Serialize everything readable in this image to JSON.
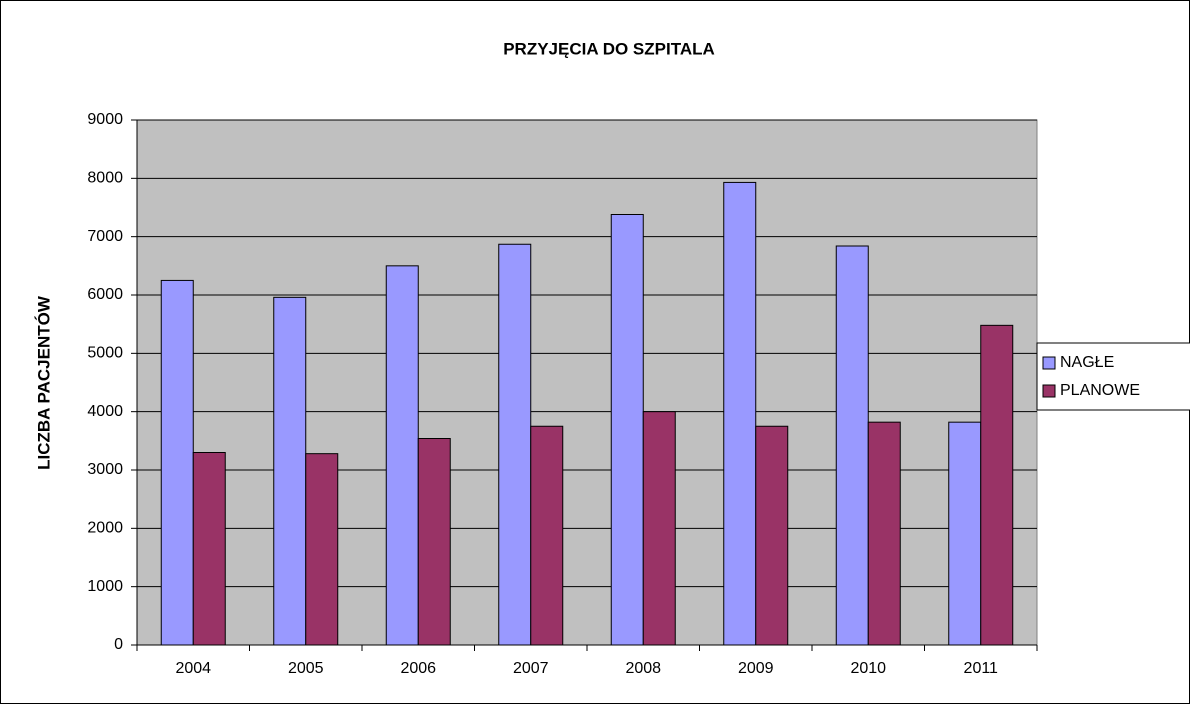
{
  "chart_data": {
    "type": "bar",
    "title": "PRZYJĘCIA DO SZPITALA",
    "y_label": "LICZBA PACJENTÓW",
    "categories": [
      "2004",
      "2005",
      "2006",
      "2007",
      "2008",
      "2009",
      "2010",
      "2011"
    ],
    "series": [
      {
        "name": "NAGŁE",
        "color": "#9999ff",
        "values": [
          6250,
          5960,
          6500,
          6870,
          7380,
          7930,
          6840,
          3820
        ]
      },
      {
        "name": "PLANOWE",
        "color": "#993366",
        "values": [
          3300,
          3280,
          3540,
          3750,
          4000,
          3750,
          3820,
          5480
        ]
      }
    ],
    "ylim": [
      0,
      9000
    ],
    "yticks": [
      0,
      1000,
      2000,
      3000,
      4000,
      5000,
      6000,
      7000,
      8000,
      9000
    ],
    "grid": true,
    "legend": "right"
  }
}
